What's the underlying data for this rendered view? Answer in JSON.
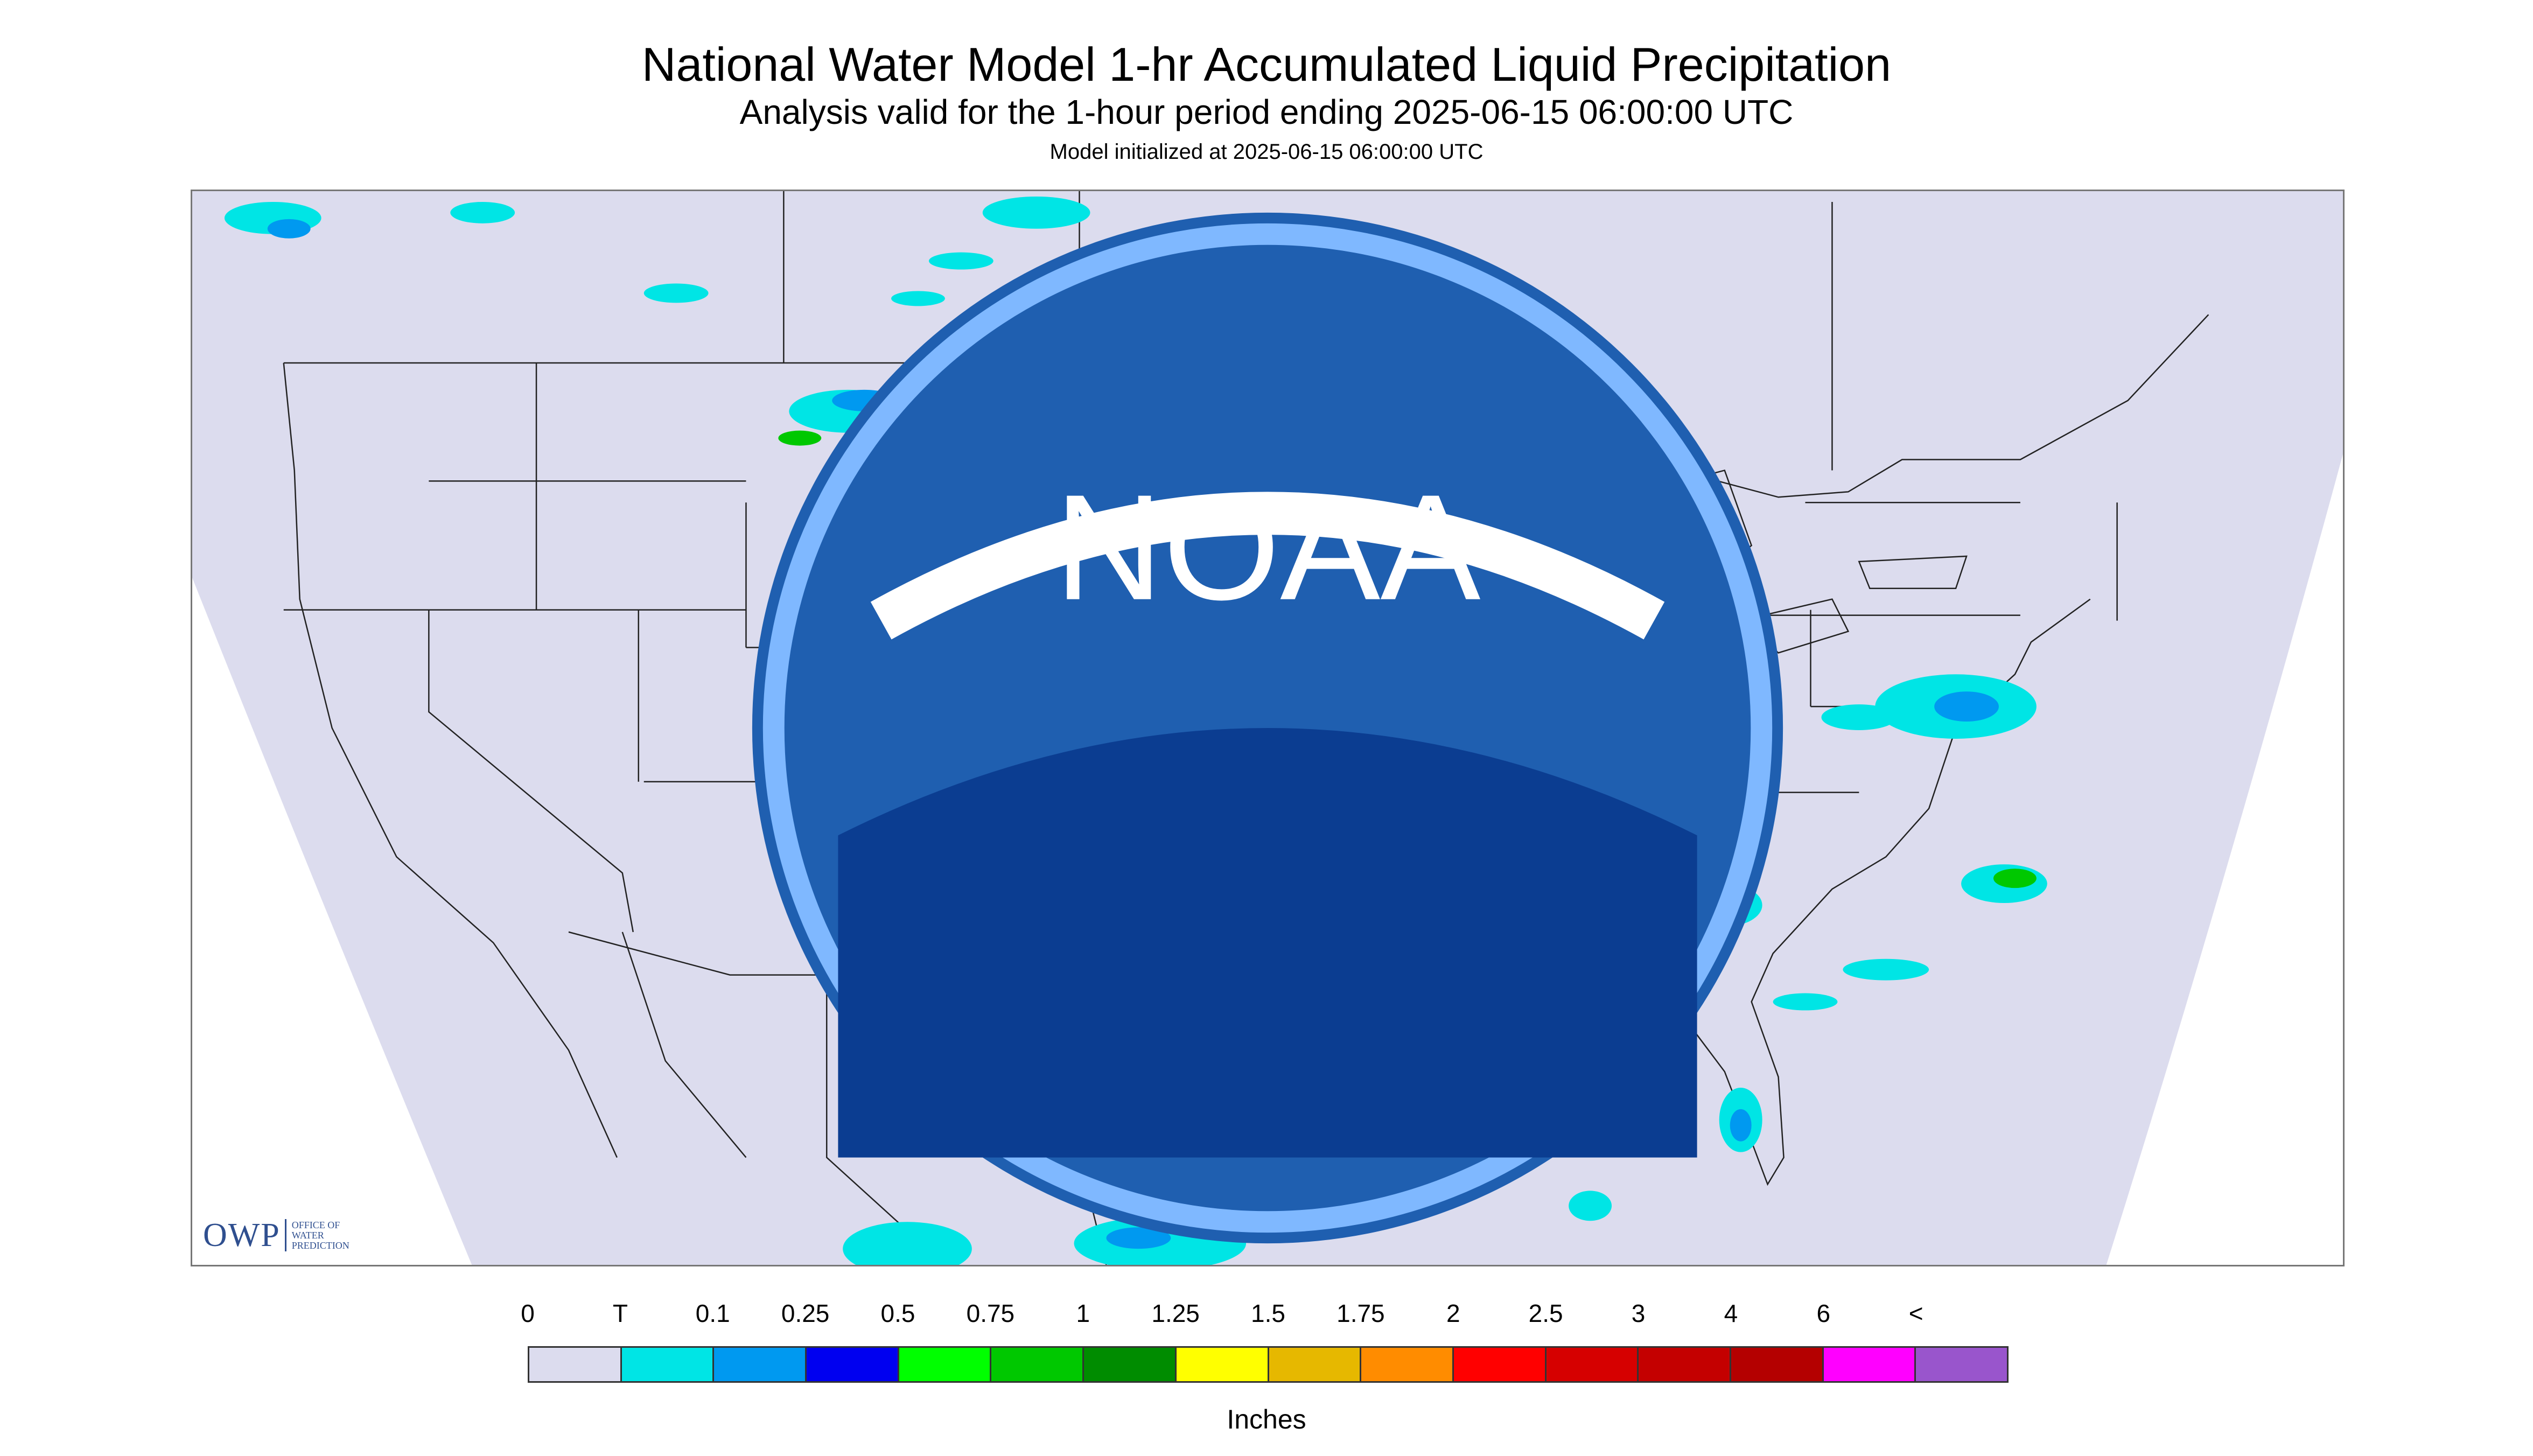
{
  "title": "National Water Model 1-hr Accumulated Liquid Precipitation",
  "subtitle": "Analysis valid for the 1-hour period ending 2025-06-15 06:00:00 UTC",
  "init_line": "Model initialized at 2025-06-15 06:00:00 UTC",
  "logos": {
    "owp_mark": "OWP",
    "owp_text": [
      "OFFICE OF",
      "WATER",
      "PREDICTION"
    ],
    "noaa_text": "NOAA"
  },
  "colors": {
    "map_background": "#dcdcee",
    "outside_domain": "#ffffff",
    "boundary_lines": "#222222"
  },
  "legend": {
    "labels": [
      "0",
      "T",
      "0.1",
      "0.25",
      "0.5",
      "0.75",
      "1",
      "1.25",
      "1.5",
      "1.75",
      "2",
      "2.5",
      "3",
      "4",
      "6",
      "<"
    ],
    "colors": [
      "#dcdcee",
      "#00e5e5",
      "#0099f0",
      "#0000f0",
      "#00ff00",
      "#00c800",
      "#008c00",
      "#ffff00",
      "#e6b800",
      "#ff8c00",
      "#ff0000",
      "#d60000",
      "#c40000",
      "#b40000",
      "#ff00ff",
      "#9955cc"
    ],
    "units": "Inches"
  }
}
